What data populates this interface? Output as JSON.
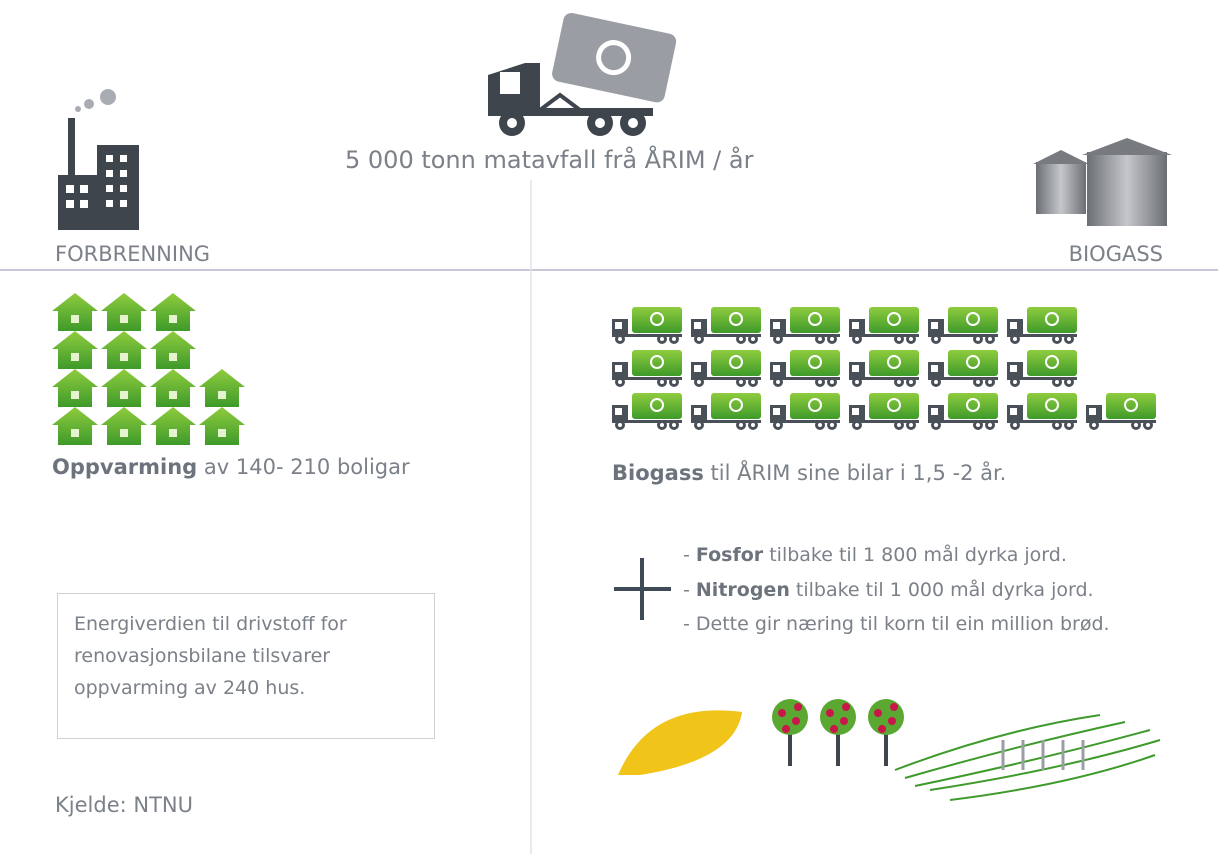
{
  "top": {
    "title": "5 000 tonn matavfall frå ÅRIM / år"
  },
  "left": {
    "heading": "FORBRENNING",
    "result_bold": "Oppvarming",
    "result_text": "av 140- 210 boligar",
    "note_lines": [
      "Energiverdien til drivstoff for",
      "renovasjonsbilane tilsvarer",
      "oppvarming av 240 hus."
    ],
    "source": "Kjelde: NTNU"
  },
  "right": {
    "heading": "BIOGASS",
    "result_bold": "Biogass",
    "result_text": "til ÅRIM sine bilar i 1,5 -2 år.",
    "items": [
      {
        "prefix": "-",
        "bold": "Fosfor",
        "text": "tilbake til 1 800 mål dyrka jord."
      },
      {
        "prefix": "-",
        "bold": "Nitrogen",
        "text": "tilbake til 1 000 mål dyrka jord."
      },
      {
        "prefix": "-",
        "text": "Dette gir næring til korn til ein million brød."
      }
    ]
  }
}
